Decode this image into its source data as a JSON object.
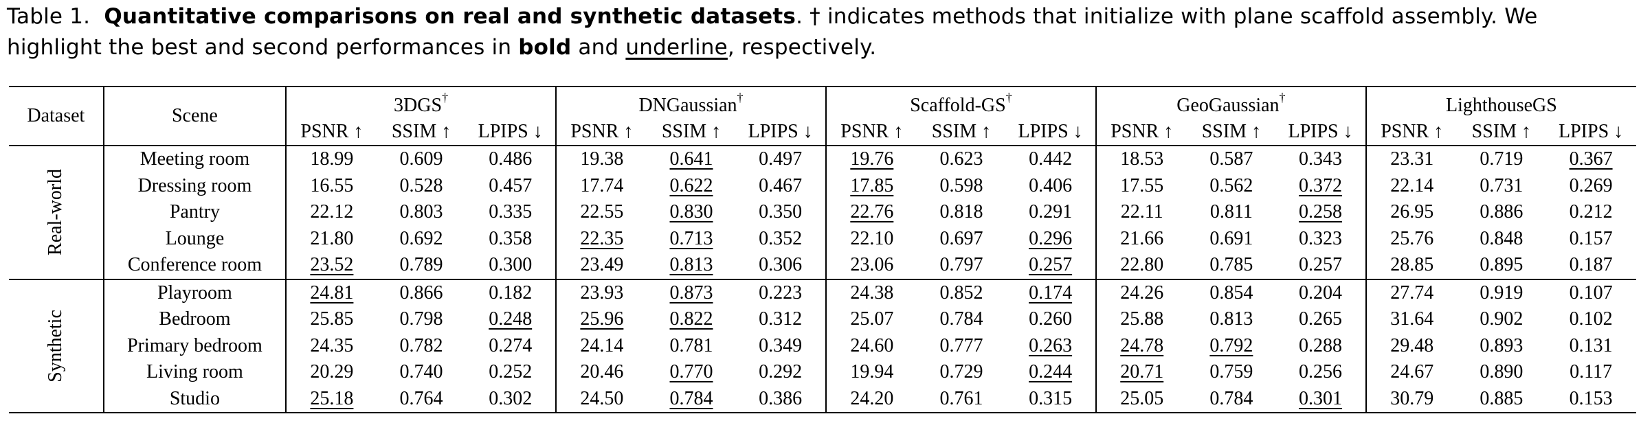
{
  "caption": {
    "label": "Table 1.",
    "title": "Quantitative comparisons on real and synthetic datasets",
    "text_1": ". † indicates methods that initialize with plane scaffold assembly. We highlight the best and second performances in ",
    "bold_word": "bold",
    "and_word": " and ",
    "underline_word": "underline",
    "text_2": ", respectively."
  },
  "header": {
    "dataset": "Dataset",
    "scene": "Scene",
    "dagger": "†",
    "methods": [
      "3DGS",
      "DNGaussian",
      "Scaffold-GS",
      "GeoGaussian",
      "LighthouseGS"
    ],
    "method_dagger": [
      true,
      true,
      true,
      true,
      false
    ],
    "metrics": [
      "PSNR ↑",
      "SSIM ↑",
      "LPIPS ↓"
    ]
  },
  "groups": [
    {
      "name": "Real-world",
      "rows": [
        {
          "scene": "Meeting room",
          "values": [
            "18.99",
            "0.609",
            "0.486",
            "19.38",
            "0.641",
            "0.497",
            "19.76",
            "0.623",
            "0.442",
            "18.53",
            "0.587",
            "0.343",
            "23.31",
            "0.719",
            "0.367"
          ],
          "bold": [
            11,
            12,
            13
          ],
          "underline": [
            4,
            6,
            14
          ]
        },
        {
          "scene": "Dressing room",
          "values": [
            "16.55",
            "0.528",
            "0.457",
            "17.74",
            "0.622",
            "0.467",
            "17.85",
            "0.598",
            "0.406",
            "17.55",
            "0.562",
            "0.372",
            "22.14",
            "0.731",
            "0.269"
          ],
          "bold": [
            12,
            13,
            14
          ],
          "underline": [
            4,
            6,
            11
          ]
        },
        {
          "scene": "Pantry",
          "values": [
            "22.12",
            "0.803",
            "0.335",
            "22.55",
            "0.830",
            "0.350",
            "22.76",
            "0.818",
            "0.291",
            "22.11",
            "0.811",
            "0.258",
            "26.95",
            "0.886",
            "0.212"
          ],
          "bold": [
            12,
            13,
            14
          ],
          "underline": [
            4,
            6,
            11
          ]
        },
        {
          "scene": "Lounge",
          "values": [
            "21.80",
            "0.692",
            "0.358",
            "22.35",
            "0.713",
            "0.352",
            "22.10",
            "0.697",
            "0.296",
            "21.66",
            "0.691",
            "0.323",
            "25.76",
            "0.848",
            "0.157"
          ],
          "bold": [
            12,
            13,
            14
          ],
          "underline": [
            3,
            4,
            8
          ]
        },
        {
          "scene": "Conference room",
          "values": [
            "23.52",
            "0.789",
            "0.300",
            "23.49",
            "0.813",
            "0.306",
            "23.06",
            "0.797",
            "0.257",
            "22.80",
            "0.785",
            "0.257",
            "28.85",
            "0.895",
            "0.187"
          ],
          "bold": [
            12,
            13,
            14
          ],
          "underline": [
            0,
            4,
            8
          ]
        }
      ]
    },
    {
      "name": "Synthetic",
      "rows": [
        {
          "scene": "Playroom",
          "values": [
            "24.81",
            "0.866",
            "0.182",
            "23.93",
            "0.873",
            "0.223",
            "24.38",
            "0.852",
            "0.174",
            "24.26",
            "0.854",
            "0.204",
            "27.74",
            "0.919",
            "0.107"
          ],
          "bold": [
            12,
            13,
            14
          ],
          "underline": [
            0,
            4,
            8
          ]
        },
        {
          "scene": "Bedroom",
          "values": [
            "25.85",
            "0.798",
            "0.248",
            "25.96",
            "0.822",
            "0.312",
            "25.07",
            "0.784",
            "0.260",
            "25.88",
            "0.813",
            "0.265",
            "31.64",
            "0.902",
            "0.102"
          ],
          "bold": [
            12,
            13,
            14
          ],
          "underline": [
            2,
            3,
            4
          ]
        },
        {
          "scene": "Primary bedroom",
          "values": [
            "24.35",
            "0.782",
            "0.274",
            "24.14",
            "0.781",
            "0.349",
            "24.60",
            "0.777",
            "0.263",
            "24.78",
            "0.792",
            "0.288",
            "29.48",
            "0.893",
            "0.131"
          ],
          "bold": [
            12,
            13,
            14
          ],
          "underline": [
            8,
            9,
            10
          ]
        },
        {
          "scene": "Living room",
          "values": [
            "20.29",
            "0.740",
            "0.252",
            "20.46",
            "0.770",
            "0.292",
            "19.94",
            "0.729",
            "0.244",
            "20.71",
            "0.759",
            "0.256",
            "24.67",
            "0.890",
            "0.117"
          ],
          "bold": [
            12,
            13,
            14
          ],
          "underline": [
            4,
            8,
            9
          ]
        },
        {
          "scene": "Studio",
          "values": [
            "25.18",
            "0.764",
            "0.302",
            "24.50",
            "0.784",
            "0.386",
            "24.20",
            "0.761",
            "0.315",
            "25.05",
            "0.784",
            "0.301",
            "30.79",
            "0.885",
            "0.153"
          ],
          "bold": [
            12,
            13,
            14
          ],
          "underline": [
            0,
            4,
            11
          ]
        }
      ]
    }
  ]
}
